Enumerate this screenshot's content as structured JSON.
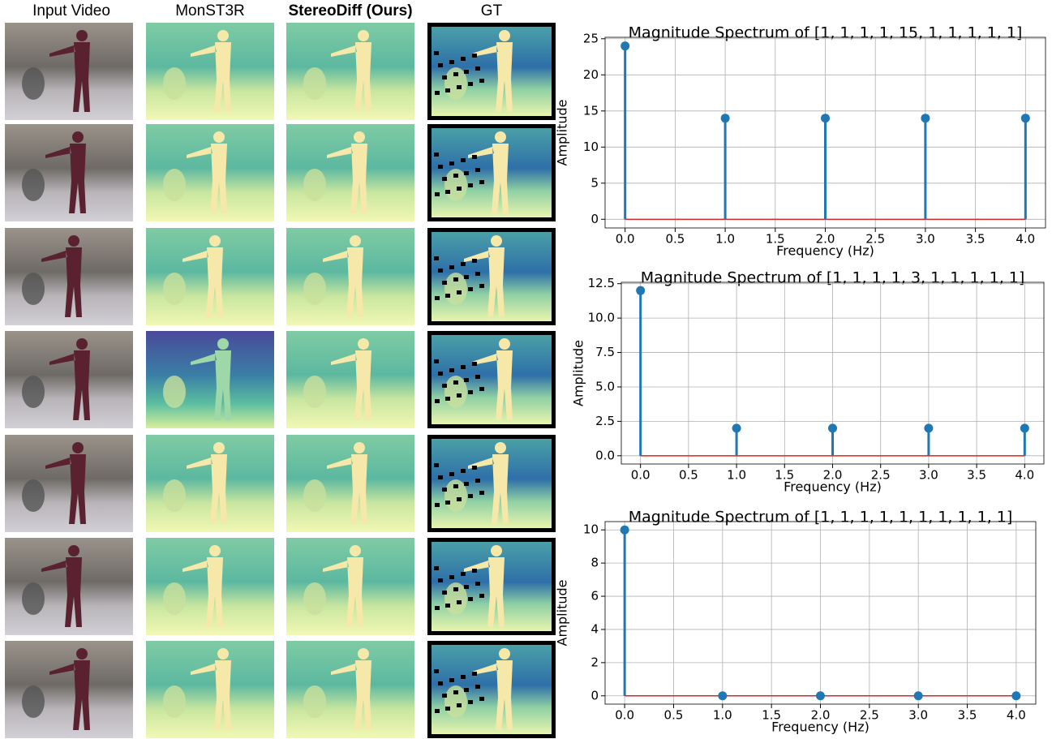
{
  "columns": [
    "Input Video",
    "MonST3R",
    "StereoDiff (Ours)",
    "GT"
  ],
  "chart_data": [
    {
      "type": "stem",
      "title": "Magnitude Spectrum of [1, 1, 1, 1, 15, 1, 1, 1, 1, 1]",
      "xlabel": "Frequency (Hz)",
      "ylabel": "Amplitude",
      "x": [
        0,
        1,
        2,
        3,
        4
      ],
      "values": [
        24,
        14,
        14,
        14,
        14
      ],
      "color": "#1f77b4",
      "baseline_color": "#d62728",
      "xlim": [
        -0.2,
        4.2
      ],
      "xticks": [
        {
          "value": 0,
          "label": "0.0"
        },
        0.5,
        {
          "value": 1,
          "label": "1.0"
        },
        1.5,
        {
          "value": 2,
          "label": "2.0"
        },
        2.5,
        {
          "value": 3,
          "label": "3.0"
        },
        3.5,
        {
          "value": 4,
          "label": "4.0"
        }
      ],
      "ylim": [
        -1.2,
        25.2
      ],
      "yticks": [
        0,
        5,
        10,
        15,
        20,
        25
      ],
      "grid": true
    },
    {
      "type": "stem",
      "title": "Magnitude Spectrum of [1, 1, 1, 1, 3, 1, 1, 1, 1, 1]",
      "xlabel": "Frequency (Hz)",
      "ylabel": "Amplitude",
      "x": [
        0,
        1,
        2,
        3,
        4
      ],
      "values": [
        12,
        2,
        2,
        2,
        2
      ],
      "color": "#1f77b4",
      "baseline_color": "#d62728",
      "xlim": [
        -0.2,
        4.2
      ],
      "xticks": [
        {
          "value": 0,
          "label": "0.0"
        },
        0.5,
        {
          "value": 1,
          "label": "1.0"
        },
        1.5,
        {
          "value": 2,
          "label": "2.0"
        },
        2.5,
        {
          "value": 3,
          "label": "3.0"
        },
        3.5,
        {
          "value": 4,
          "label": "4.0"
        }
      ],
      "ylim": [
        -0.6,
        12.6
      ],
      "yticks": [
        {
          "value": 0,
          "label": "0.0"
        },
        2.5,
        {
          "value": 5,
          "label": "5.0"
        },
        7.5,
        {
          "value": 10,
          "label": "10.0"
        },
        12.5
      ],
      "grid": true
    },
    {
      "type": "stem",
      "title": "Magnitude Spectrum of [1, 1, 1, 1, 1, 1, 1, 1, 1, 1]",
      "xlabel": "Frequency (Hz)",
      "ylabel": "Amplitude",
      "x": [
        0,
        1,
        2,
        3,
        4
      ],
      "values": [
        10,
        0,
        0,
        0,
        0
      ],
      "color": "#1f77b4",
      "baseline_color": "#d62728",
      "xlim": [
        -0.2,
        4.2
      ],
      "xticks": [
        {
          "value": 0,
          "label": "0.0"
        },
        0.5,
        {
          "value": 1,
          "label": "1.0"
        },
        1.5,
        {
          "value": 2,
          "label": "2.0"
        },
        2.5,
        {
          "value": 3,
          "label": "3.0"
        },
        3.5,
        {
          "value": 4,
          "label": "4.0"
        }
      ],
      "ylim": [
        -0.5,
        10.5
      ],
      "yticks": [
        0,
        2,
        4,
        6,
        8,
        10
      ],
      "grid": true
    }
  ]
}
